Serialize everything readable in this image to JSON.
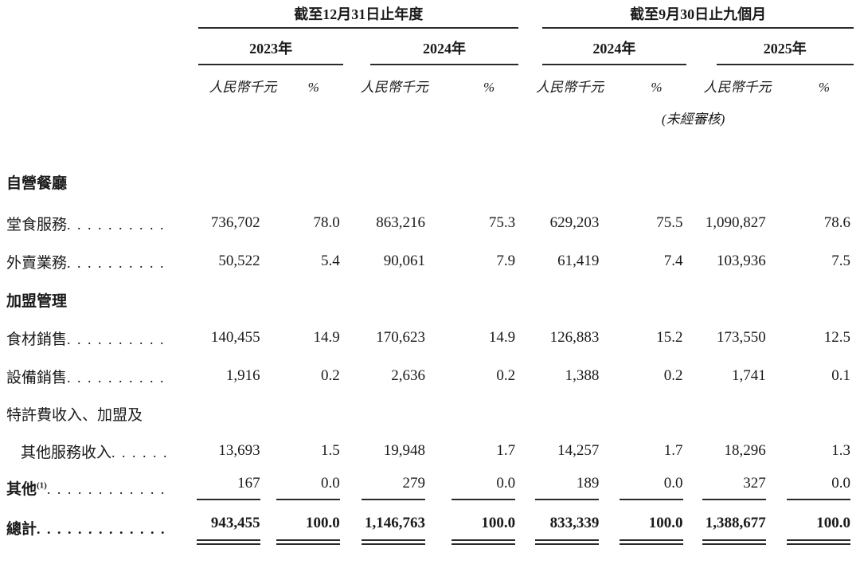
{
  "table": {
    "header": {
      "period_groups": [
        {
          "label": "截至12月31日止年度"
        },
        {
          "label": "截至9月30日止九個月"
        }
      ],
      "year_columns": [
        {
          "label": "2023年"
        },
        {
          "label": "2024年"
        },
        {
          "label": "2024年"
        },
        {
          "label": "2025年"
        }
      ],
      "unit_label": "人民幣千元",
      "percent_label": "%",
      "unaudited_note": "(未經審核)"
    },
    "rows": [
      {
        "type": "section",
        "label": "自營餐廳"
      },
      {
        "type": "data",
        "label": "堂食服務",
        "values": [
          "736,702",
          "78.0",
          "863,216",
          "75.3",
          "629,203",
          "75.5",
          "1,090,827",
          "78.6"
        ]
      },
      {
        "type": "data",
        "label": "外賣業務",
        "values": [
          "50,522",
          "5.4",
          "90,061",
          "7.9",
          "61,419",
          "7.4",
          "103,936",
          "7.5"
        ]
      },
      {
        "type": "section",
        "label": "加盟管理"
      },
      {
        "type": "data",
        "label": "食材銷售",
        "values": [
          "140,455",
          "14.9",
          "170,623",
          "14.9",
          "126,883",
          "15.2",
          "173,550",
          "12.5"
        ]
      },
      {
        "type": "data",
        "label": "設備銷售",
        "values": [
          "1,916",
          "0.2",
          "2,636",
          "0.2",
          "1,388",
          "0.2",
          "1,741",
          "0.1"
        ]
      },
      {
        "type": "wrap",
        "label": "特許費收入、加盟及"
      },
      {
        "type": "data",
        "label": "其他服務收入",
        "values": [
          "13,693",
          "1.5",
          "19,948",
          "1.7",
          "14,257",
          "1.7",
          "18,296",
          "1.3"
        ]
      },
      {
        "type": "data",
        "label": "其他",
        "footnote": "(1)",
        "values": [
          "167",
          "0.0",
          "279",
          "0.0",
          "189",
          "0.0",
          "327",
          "0.0"
        ]
      },
      {
        "type": "total",
        "label": "總計",
        "values": [
          "943,455",
          "100.0",
          "1,146,763",
          "100.0",
          "833,339",
          "100.0",
          "1,388,677",
          "100.0"
        ]
      }
    ]
  }
}
